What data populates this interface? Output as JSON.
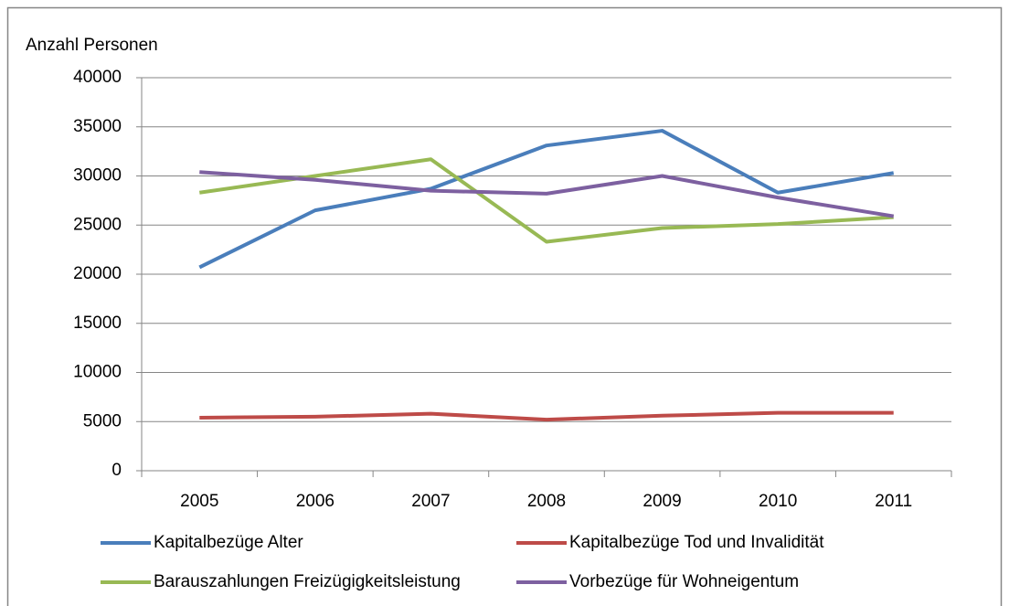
{
  "chart_data": {
    "type": "line",
    "y_label": "Anzahl Personen",
    "categories": [
      "2005",
      "2006",
      "2007",
      "2008",
      "2009",
      "2010",
      "2011"
    ],
    "series": [
      {
        "name": "Kapitalbezüge Alter",
        "color": "#4a7ebb",
        "values": [
          20700,
          26500,
          28700,
          33100,
          34600,
          28300,
          30300
        ]
      },
      {
        "name": "Kapitalbezüge Tod und Invalidität",
        "color": "#be4b48",
        "values": [
          5400,
          5500,
          5800,
          5200,
          5600,
          5900,
          5900
        ]
      },
      {
        "name": "Barauszahlungen Freizügigkeitsleistung",
        "color": "#98b954",
        "values": [
          28300,
          30000,
          31700,
          23300,
          24700,
          25100,
          25800
        ]
      },
      {
        "name": "Vorbezüge für Wohneigentum",
        "color": "#7d60a0",
        "values": [
          30400,
          29600,
          28500,
          28200,
          30000,
          27800,
          25900
        ]
      }
    ],
    "ylim": [
      0,
      40000
    ],
    "yticks": [
      0,
      5000,
      10000,
      15000,
      20000,
      25000,
      30000,
      35000,
      40000
    ],
    "grid": true
  }
}
